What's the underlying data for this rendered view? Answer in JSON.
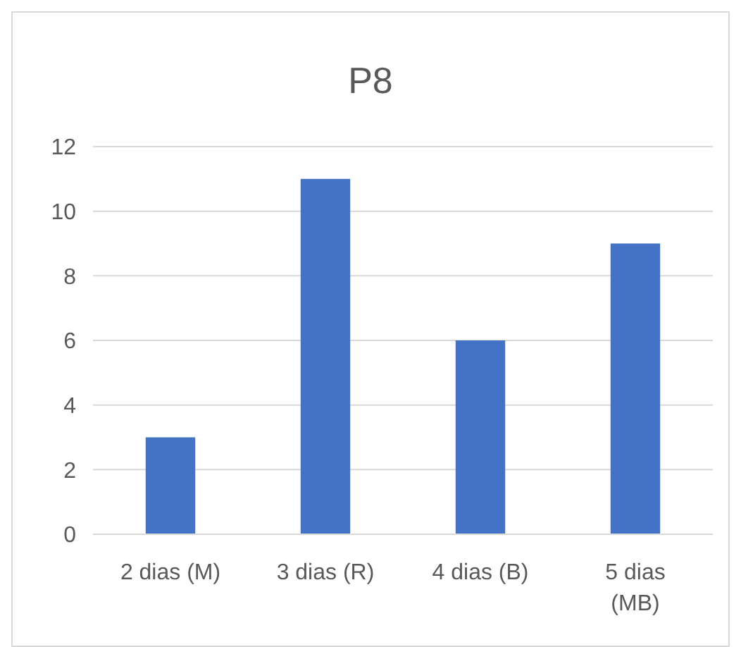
{
  "chart_data": {
    "type": "bar",
    "title": "P8",
    "categories": [
      "2 dias (M)",
      "3 dias (R)",
      "4 dias (B)",
      "5 dias (MB)"
    ],
    "values": [
      3,
      11,
      6,
      9
    ],
    "color": "#4472c4",
    "ylim": [
      0,
      12
    ],
    "yticks": [
      0,
      2,
      4,
      6,
      8,
      10,
      12
    ],
    "grid": "y"
  }
}
